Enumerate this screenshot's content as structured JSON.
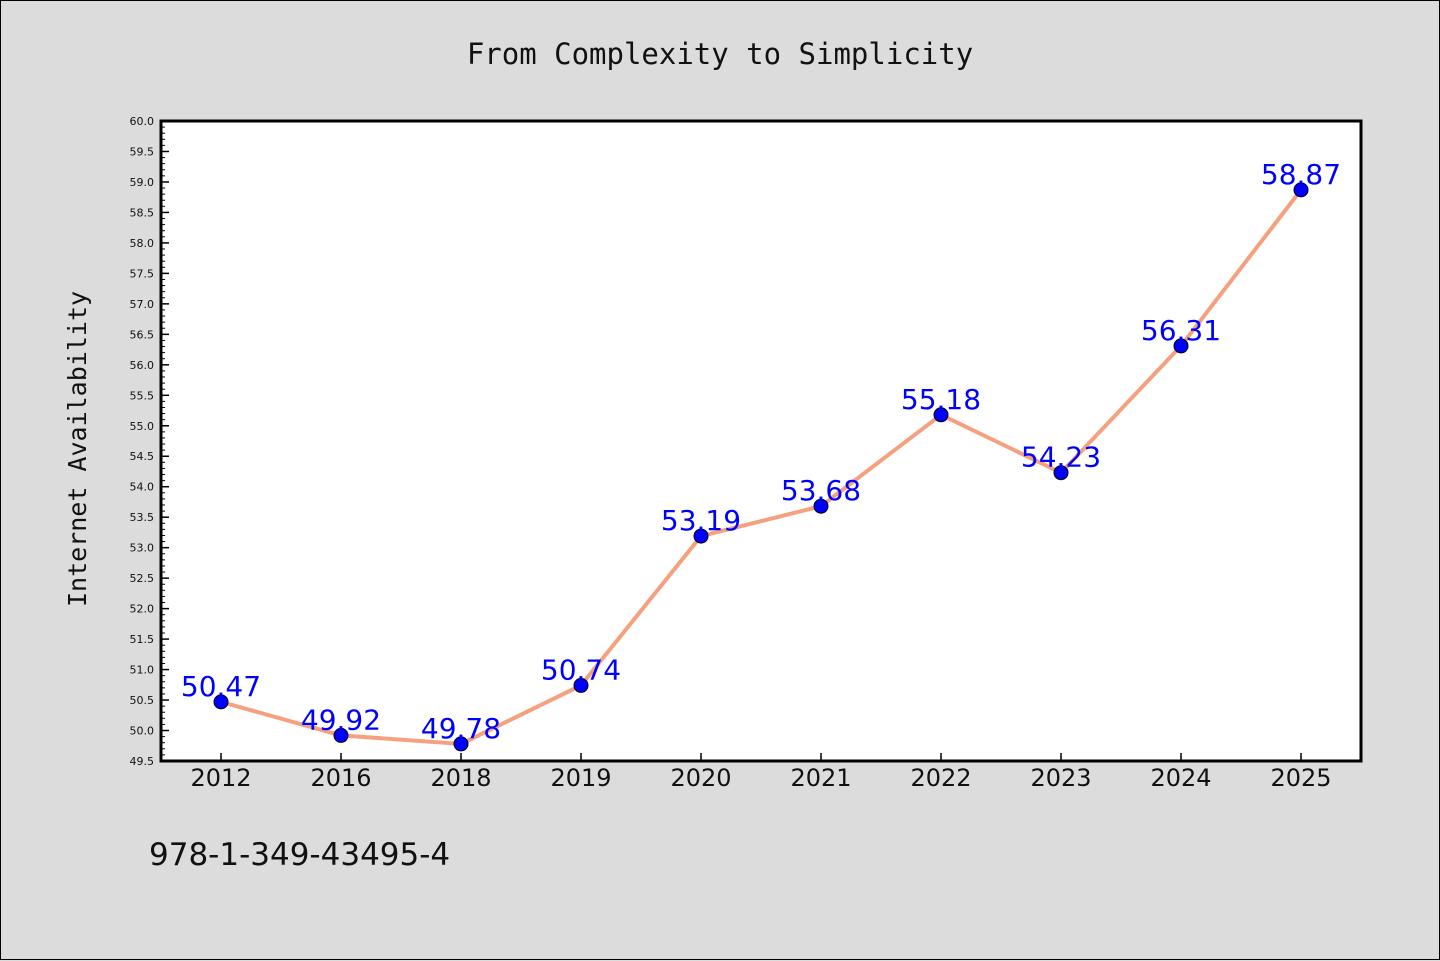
{
  "colors": {
    "background": "#dcdcdc",
    "plot_background": "#ffffff",
    "line": "#f5a07e",
    "marker": "#0000ff",
    "label": "#0000ff"
  },
  "footer": {
    "isbn": "978-1-349-43495-4"
  },
  "chart_data": {
    "type": "line",
    "title": "From Complexity to Simplicity",
    "xlabel": "",
    "ylabel": "Internet Availability",
    "categories": [
      "2012",
      "2016",
      "2018",
      "2019",
      "2020",
      "2021",
      "2022",
      "2023",
      "2024",
      "2025"
    ],
    "values": [
      50.47,
      49.92,
      49.78,
      50.74,
      53.19,
      53.68,
      55.18,
      54.23,
      56.31,
      58.87
    ],
    "data_labels": [
      "50.47",
      "49.92",
      "49.78",
      "50.74",
      "53.19",
      "53.68",
      "55.18",
      "54.23",
      "56.31",
      "58.87"
    ],
    "ylim": [
      49.5,
      60.0
    ],
    "yticks": [
      "49.5",
      "50.0",
      "50.5",
      "51.0",
      "51.5",
      "52.0",
      "52.5",
      "53.0",
      "53.5",
      "54.0",
      "54.5",
      "55.0",
      "55.5",
      "56.0",
      "56.5",
      "57.0",
      "57.5",
      "58.0",
      "58.5",
      "59.0",
      "59.5",
      "60.0"
    ],
    "grid": false,
    "legend": "none",
    "markers": "circle"
  }
}
